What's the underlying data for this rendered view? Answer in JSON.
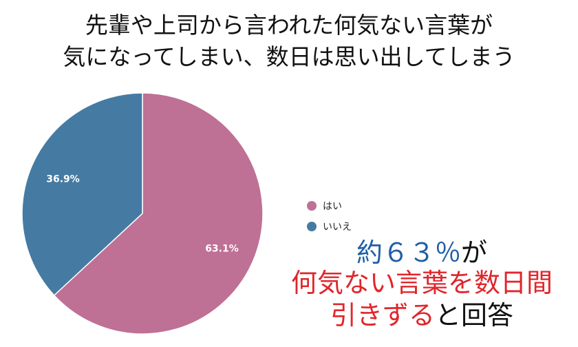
{
  "title": {
    "line1": "先輩や上司から言われた何気ない言葉が",
    "line2": "気になってしまい、数日は思い出してしまう"
  },
  "chart_data": {
    "type": "pie",
    "slices": [
      {
        "label": "はい",
        "value": 63.1,
        "value_label": "63.1%",
        "color": "#bf7095"
      },
      {
        "label": "いいえ",
        "value": 36.9,
        "value_label": "36.9%",
        "color": "#457ba3"
      }
    ],
    "legend_position": "right"
  },
  "callout": {
    "line1_part1": "約６３％",
    "line1_part2": "が",
    "line2": "何気ない言葉を数日間",
    "line3_part1": "引きずる",
    "line3_part2": "と回答",
    "colors": {
      "blue": "#1f5fa6",
      "red": "#e0262b",
      "black": "#111111"
    }
  }
}
